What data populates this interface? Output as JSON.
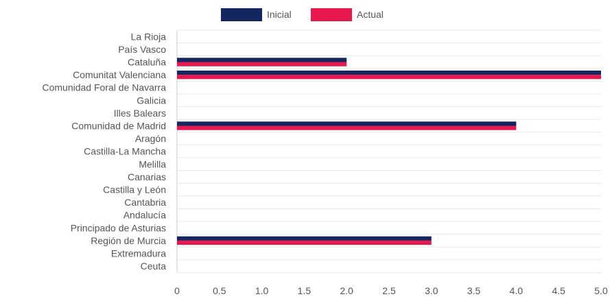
{
  "chart_data": {
    "type": "bar",
    "orientation": "horizontal",
    "categories": [
      "La Rioja",
      "País Vasco",
      "Cataluña",
      "Comunitat Valenciana",
      "Comunidad Foral de Navarra",
      "Galicia",
      "Illes Balears",
      "Comunidad de Madrid",
      "Aragón",
      "Castilla-La Mancha",
      "Melilla",
      "Canarias",
      "Castilla y León",
      "Cantabria",
      "Andalucía",
      "Principado de Asturias",
      "Región de Murcia",
      "Extremadura",
      "Ceuta"
    ],
    "series": [
      {
        "name": "Inicial",
        "color": "#13265f",
        "values": [
          0,
          0,
          2,
          5,
          0,
          0,
          0,
          4,
          0,
          0,
          0,
          0,
          0,
          0,
          0,
          0,
          3,
          0,
          0
        ]
      },
      {
        "name": "Actual",
        "color": "#e8174d",
        "values": [
          0,
          0,
          2,
          5,
          0,
          0,
          0,
          4,
          0,
          0,
          0,
          0,
          0,
          0,
          0,
          0,
          3,
          0,
          0
        ]
      }
    ],
    "xlim": [
      0,
      5
    ],
    "xticks": [
      "0",
      "0.5",
      "1.0",
      "1.5",
      "2.0",
      "2.5",
      "3.0",
      "3.5",
      "4.0",
      "4.5",
      "5.0"
    ],
    "legend_position": "top-center",
    "grid": true,
    "title": "",
    "xlabel": "",
    "ylabel": ""
  }
}
